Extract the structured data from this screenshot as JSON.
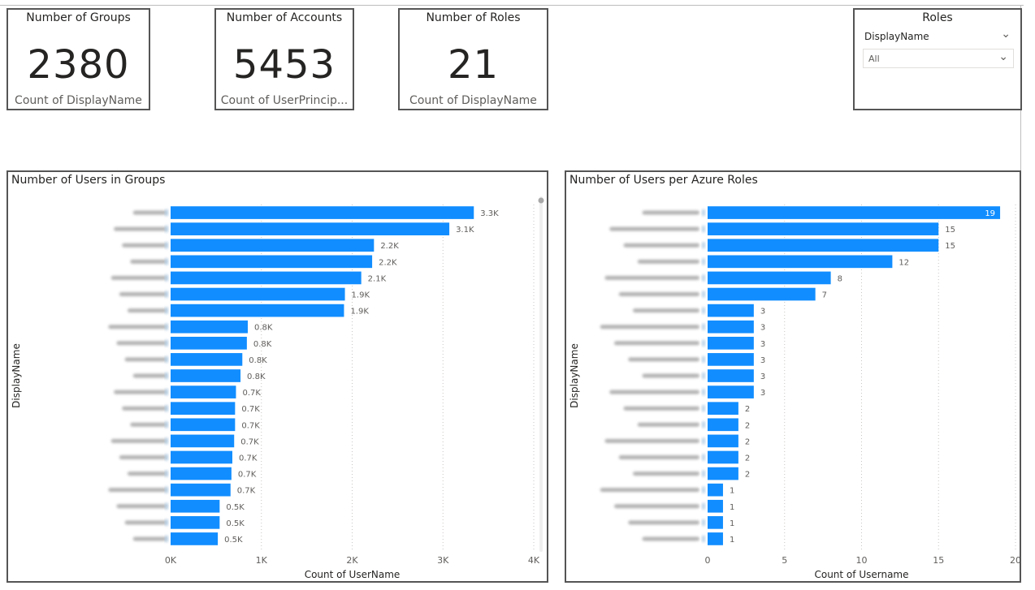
{
  "cards": [
    {
      "title": "Number of Groups",
      "value": "2380",
      "subtitle": "Count of DisplayName"
    },
    {
      "title": "Number of Accounts",
      "value": "5453",
      "subtitle": "Count of UserPrincip..."
    },
    {
      "title": "Number of Roles",
      "value": "21",
      "subtitle": "Count of DisplayName"
    }
  ],
  "slicer": {
    "title": "Roles",
    "field": "DisplayName",
    "selected": "All",
    "field_icon": "chevron-down-icon",
    "dropdown_icon": "chevron-down-icon"
  },
  "colors": {
    "bar": "#118DFF",
    "border": "#555555"
  },
  "chart_data": [
    {
      "type": "bar",
      "orientation": "horizontal",
      "title": "Number of Users in Groups",
      "xlabel": "Count of UserName",
      "ylabel": "DisplayName",
      "xlim": [
        0,
        4000
      ],
      "ticks": [
        0,
        1000,
        2000,
        3000,
        4000
      ],
      "tick_labels": [
        "0K",
        "1K",
        "2K",
        "3K",
        "4K"
      ],
      "categories_blurred": true,
      "values": [
        3340,
        3070,
        2240,
        2220,
        2100,
        1920,
        1910,
        850,
        840,
        790,
        770,
        720,
        710,
        710,
        700,
        680,
        670,
        660,
        540,
        540,
        520
      ],
      "data_labels": [
        "3.3K",
        "3.1K",
        "2.2K",
        "2.2K",
        "2.1K",
        "1.9K",
        "1.9K",
        "0.8K",
        "0.8K",
        "0.8K",
        "0.8K",
        "0.7K",
        "0.7K",
        "0.7K",
        "0.7K",
        "0.7K",
        "0.7K",
        "0.7K",
        "0.5K",
        "0.5K",
        "0.5K"
      ],
      "grid": true,
      "scrollbar": true
    },
    {
      "type": "bar",
      "orientation": "horizontal",
      "title": "Number of Users per Azure Roles",
      "xlabel": "Count of Username",
      "ylabel": "DisplayName",
      "xlim": [
        0,
        20
      ],
      "ticks": [
        0,
        5,
        10,
        15,
        20
      ],
      "tick_labels": [
        "0",
        "5",
        "10",
        "15",
        "20"
      ],
      "categories_blurred": true,
      "values": [
        19,
        15,
        15,
        12,
        8,
        7,
        3,
        3,
        3,
        3,
        3,
        3,
        2,
        2,
        2,
        2,
        2,
        1,
        1,
        1,
        1
      ],
      "data_labels": [
        "19",
        "15",
        "15",
        "12",
        "8",
        "7",
        "3",
        "3",
        "3",
        "3",
        "3",
        "3",
        "2",
        "2",
        "2",
        "2",
        "2",
        "1",
        "1",
        "1",
        "1"
      ],
      "grid": true,
      "scrollbar": false
    }
  ]
}
